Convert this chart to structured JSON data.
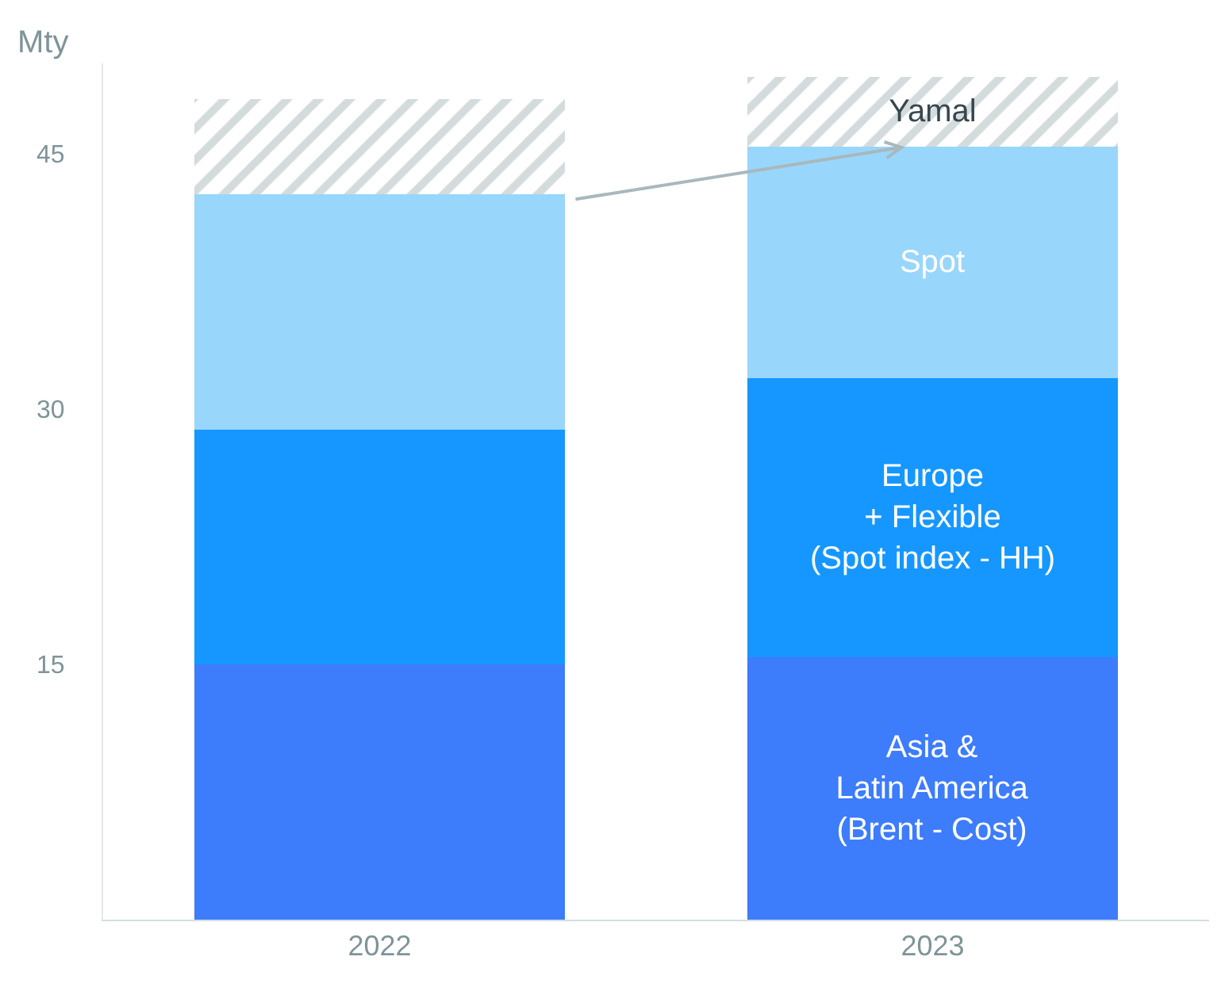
{
  "chart_data": {
    "type": "bar",
    "stacked": true,
    "ylabel": "Mty",
    "categories": [
      "2022",
      "2023"
    ],
    "series": [
      {
        "name": "Asia &\nLatin America\n(Brent - Cost)",
        "color": "#3d7cfb",
        "values": [
          15.0,
          15.4
        ]
      },
      {
        "name": "Europe\n+ Flexible\n(Spot index - HH)",
        "color": "#1697ff",
        "values": [
          13.8,
          16.4
        ]
      },
      {
        "name": "Spot",
        "color": "#99d6fb",
        "values": [
          13.8,
          13.6
        ]
      },
      {
        "name": "Yamal",
        "color": "#a9b8bc",
        "values": [
          5.6,
          4.1
        ]
      }
    ],
    "ylim": [
      0,
      50.3
    ],
    "yticks": [
      15,
      30,
      45
    ],
    "legend": false
  }
}
